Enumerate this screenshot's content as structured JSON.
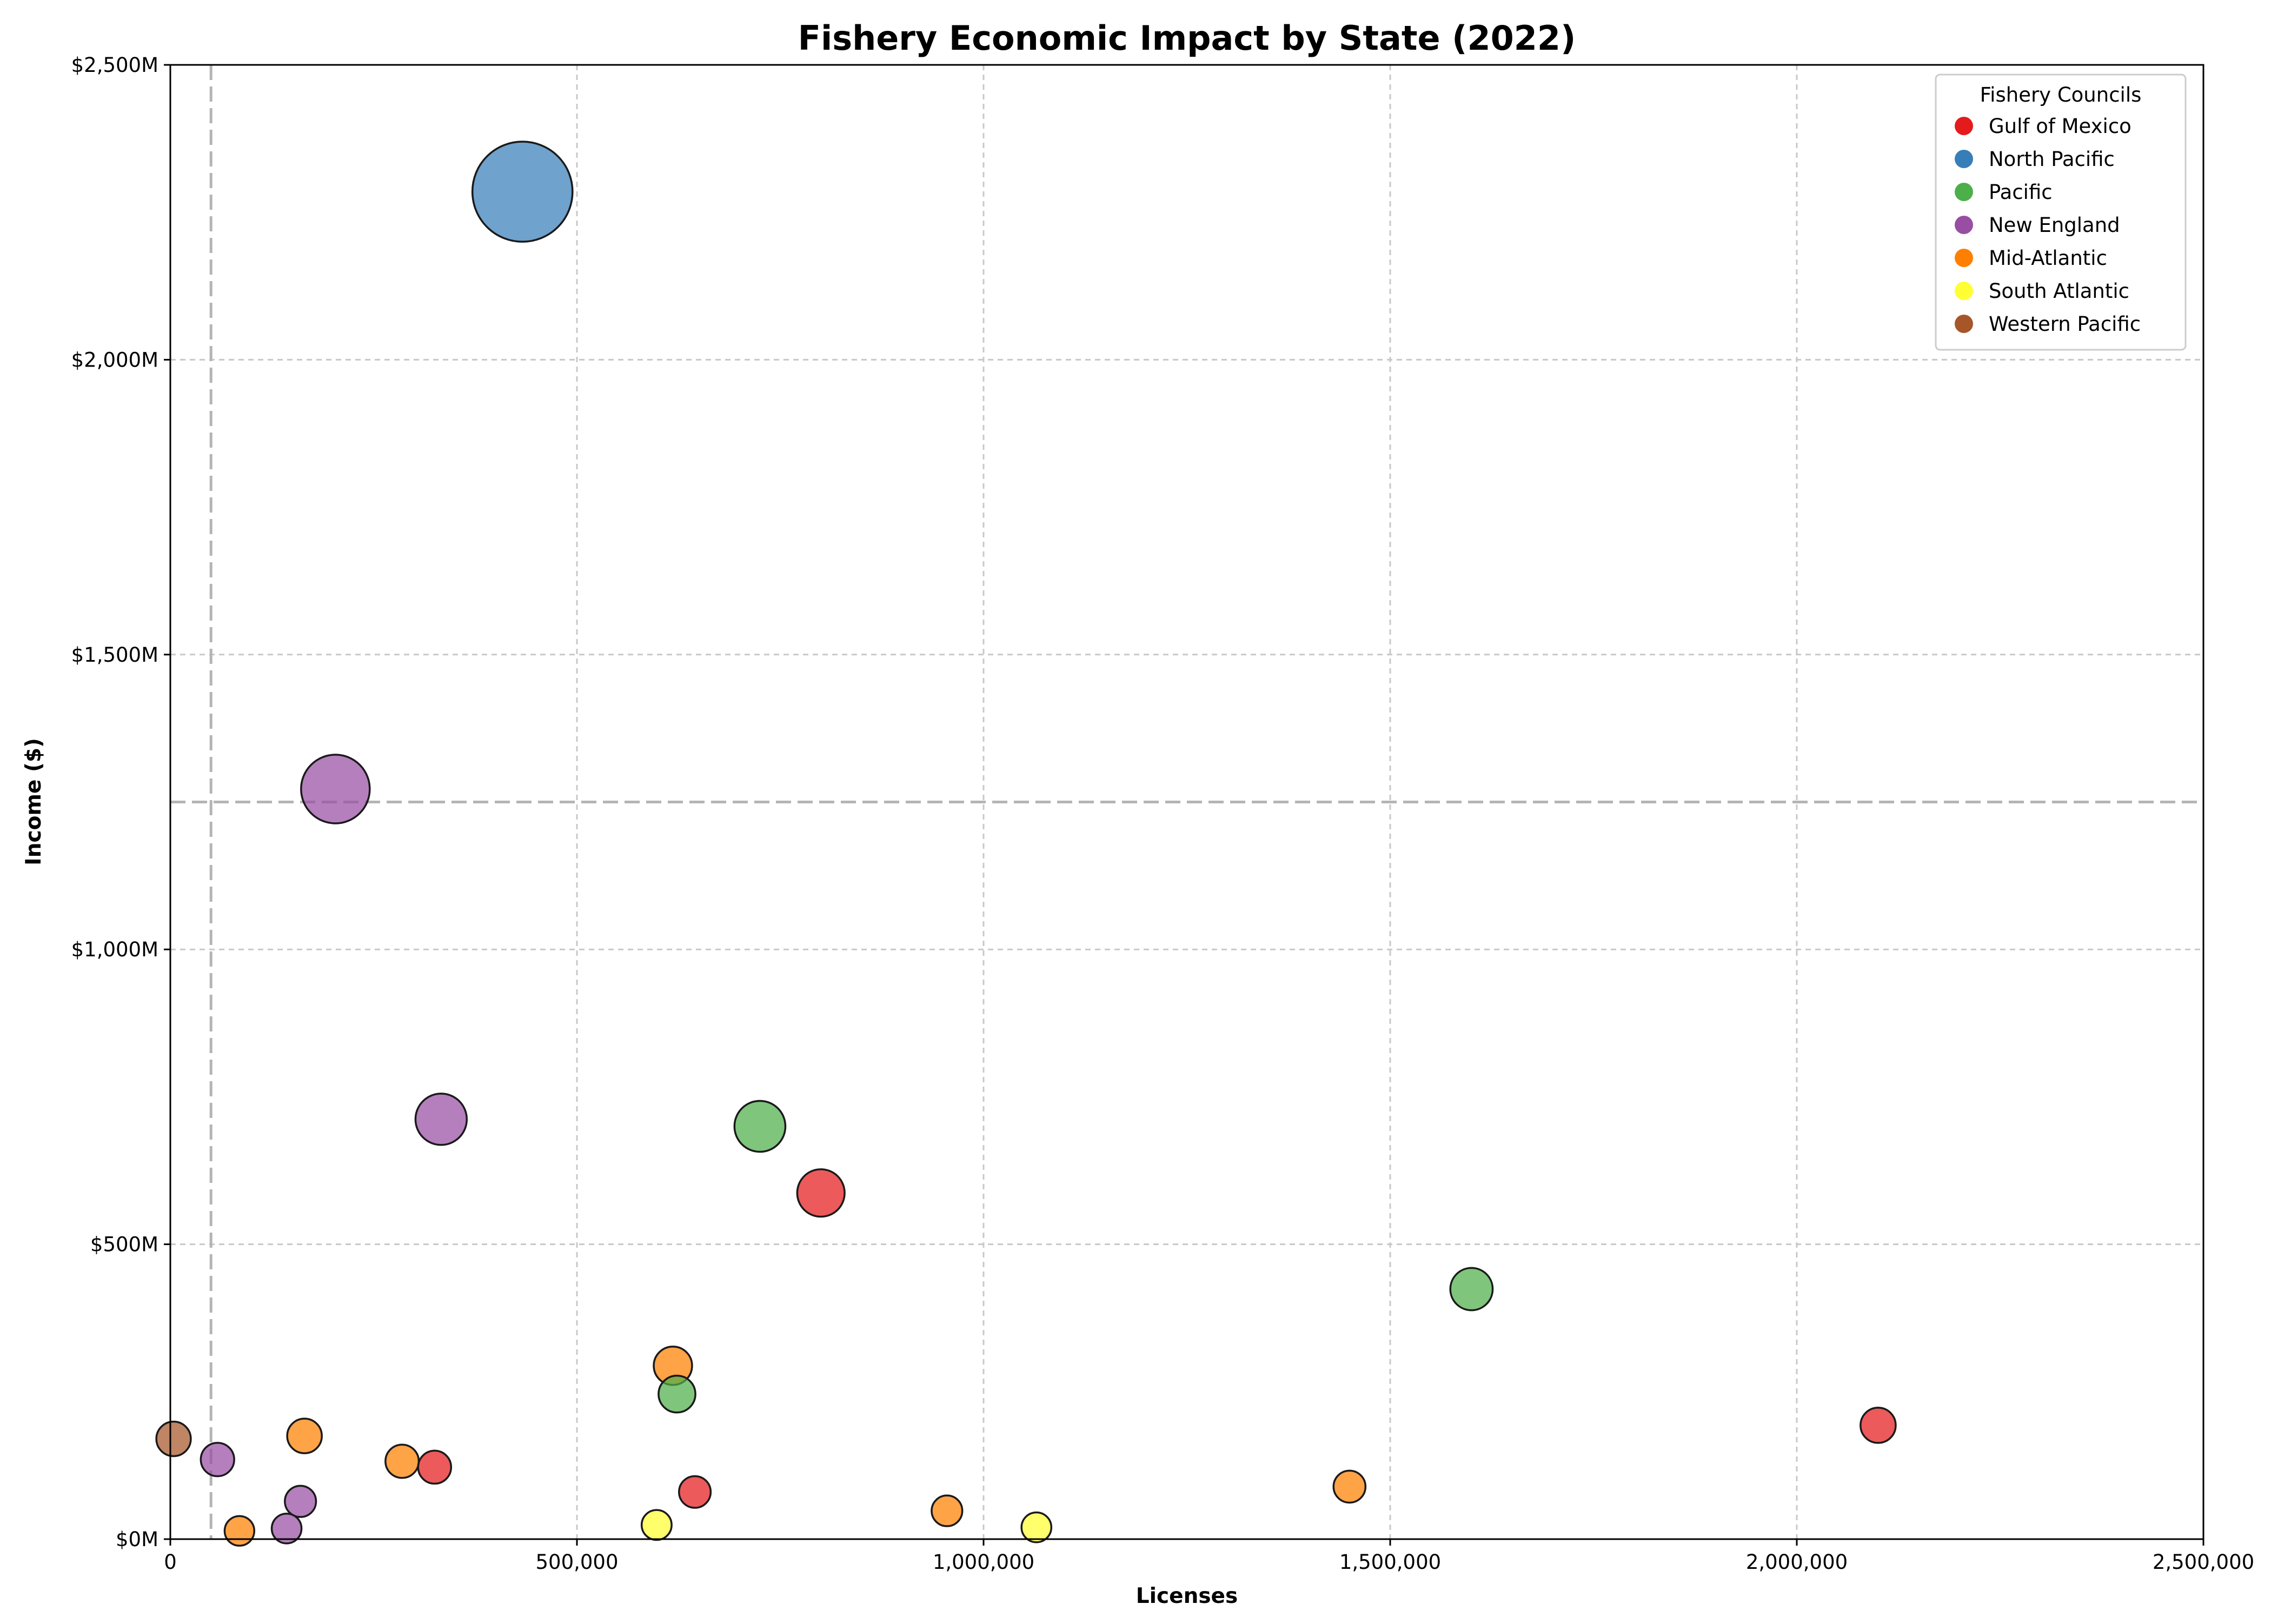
{
  "chart_data": {
    "type": "scatter",
    "title": "Fishery Economic Impact by State (2022)",
    "xlabel": "Licenses",
    "ylabel": "Income ($)",
    "xlim": [
      0,
      2500000
    ],
    "ylim": [
      0,
      2500
    ],
    "x_ticks": [
      0,
      500000,
      1000000,
      1500000,
      2000000,
      2500000
    ],
    "x_tick_labels": [
      "0",
      "500,000",
      "1,000,000",
      "1,500,000",
      "2,000,000",
      "2,500,000"
    ],
    "y_ticks": [
      0,
      500,
      1000,
      1500,
      2000,
      2500
    ],
    "y_tick_labels": [
      "$0M",
      "$500M",
      "$1,000M",
      "$1,500M",
      "$2,000M",
      "$2,500M"
    ],
    "grid": true,
    "reference_lines": {
      "vertical_x": 50000,
      "horizontal_y": 1250
    },
    "legend": {
      "title": "Fishery Councils",
      "placement": "top-right",
      "entries": [
        {
          "label": "Gulf of Mexico",
          "color": "#e41a1c"
        },
        {
          "label": "North Pacific",
          "color": "#377eb8"
        },
        {
          "label": "Pacific",
          "color": "#4daf4a"
        },
        {
          "label": "New England",
          "color": "#984ea3"
        },
        {
          "label": "Mid-Atlantic",
          "color": "#ff7f00"
        },
        {
          "label": "South Atlantic",
          "color": "#ffff33"
        },
        {
          "label": "Western Pacific",
          "color": "#a65628"
        }
      ]
    },
    "series": [
      {
        "name": "Gulf of Mexico",
        "color": "#e41a1c",
        "points": [
          {
            "x": 800000,
            "y": 587
          },
          {
            "x": 2100000,
            "y": 193
          },
          {
            "x": 325000,
            "y": 122
          },
          {
            "x": 645000,
            "y": 80
          }
        ]
      },
      {
        "name": "North Pacific",
        "color": "#377eb8",
        "points": [
          {
            "x": 433000,
            "y": 2285
          }
        ]
      },
      {
        "name": "Pacific",
        "color": "#4daf4a",
        "points": [
          {
            "x": 725000,
            "y": 700
          },
          {
            "x": 1600000,
            "y": 424
          },
          {
            "x": 623000,
            "y": 246
          }
        ]
      },
      {
        "name": "New England",
        "color": "#984ea3",
        "points": [
          {
            "x": 203000,
            "y": 1272
          },
          {
            "x": 333000,
            "y": 712
          },
          {
            "x": 58000,
            "y": 135
          },
          {
            "x": 160000,
            "y": 64
          },
          {
            "x": 143000,
            "y": 18
          }
        ]
      },
      {
        "name": "Mid-Atlantic",
        "color": "#ff7f00",
        "points": [
          {
            "x": 618000,
            "y": 294
          },
          {
            "x": 165000,
            "y": 175
          },
          {
            "x": 285000,
            "y": 132
          },
          {
            "x": 1450000,
            "y": 89
          },
          {
            "x": 955000,
            "y": 48
          },
          {
            "x": 85000,
            "y": 14
          }
        ]
      },
      {
        "name": "South Atlantic",
        "color": "#ffff33",
        "points": [
          {
            "x": 598000,
            "y": 24
          },
          {
            "x": 1065000,
            "y": 20
          }
        ]
      },
      {
        "name": "Western Pacific",
        "color": "#a65628",
        "points": [
          {
            "x": 4000,
            "y": 170
          }
        ]
      }
    ]
  }
}
